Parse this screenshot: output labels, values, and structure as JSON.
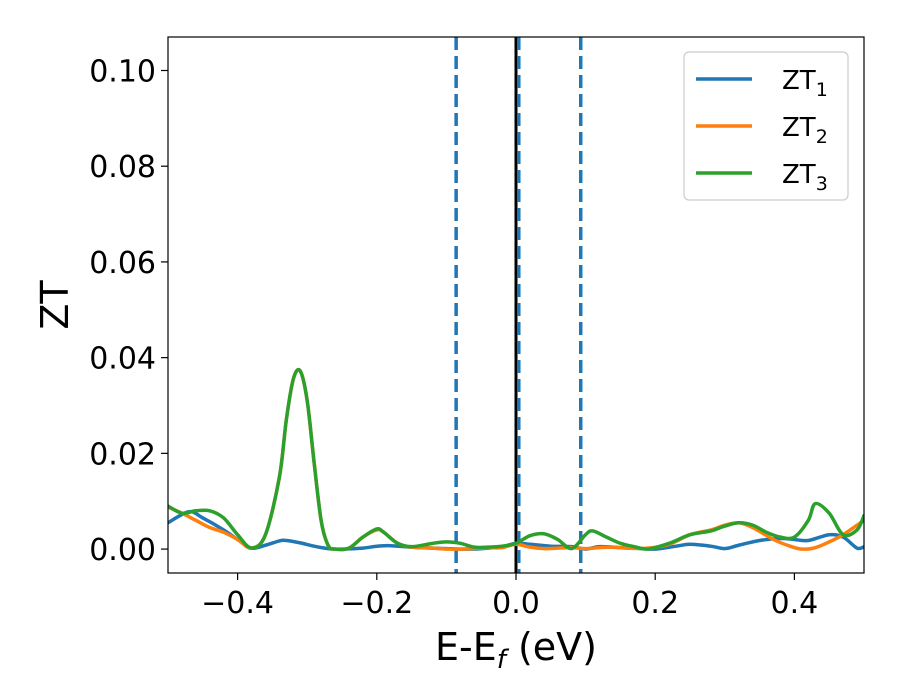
{
  "chart_data": {
    "type": "line",
    "xlabel": {
      "base": "E-E",
      "subscript": "f",
      "suffix": " (eV)"
    },
    "ylabel": "ZT",
    "xlim": [
      -0.5,
      0.5
    ],
    "ylim": [
      -0.005,
      0.107
    ],
    "xticks": [
      -0.4,
      -0.2,
      0.0,
      0.2,
      0.4
    ],
    "xtick_labels": [
      "−0.4",
      "−0.2",
      "0.0",
      "0.2",
      "0.4"
    ],
    "yticks": [
      0.0,
      0.02,
      0.04,
      0.06,
      0.08,
      0.1
    ],
    "ytick_labels": [
      "0.00",
      "0.02",
      "0.04",
      "0.06",
      "0.08",
      "0.10"
    ],
    "grid": false,
    "legend_position": "top-right",
    "vertical_lines": [
      {
        "x": 0.0,
        "style": "solid",
        "color": "#000000"
      },
      {
        "x": -0.086,
        "style": "dashed",
        "color": "#1f77b4"
      },
      {
        "x": 0.004,
        "style": "dashed",
        "color": "#1f77b4"
      },
      {
        "x": 0.093,
        "style": "dashed",
        "color": "#1f77b4"
      }
    ],
    "series": [
      {
        "name": "ZT",
        "name_sub": "1",
        "color": "#1f77b4",
        "x": [
          -0.5,
          -0.47,
          -0.45,
          -0.42,
          -0.4,
          -0.38,
          -0.36,
          -0.34,
          -0.33,
          -0.31,
          -0.29,
          -0.27,
          -0.25,
          -0.22,
          -0.2,
          -0.18,
          -0.15,
          -0.12,
          -0.1,
          -0.08,
          -0.06,
          -0.04,
          -0.02,
          0.0,
          0.02,
          0.05,
          0.08,
          0.1,
          0.12,
          0.15,
          0.18,
          0.2,
          0.23,
          0.25,
          0.28,
          0.3,
          0.32,
          0.35,
          0.38,
          0.4,
          0.42,
          0.45,
          0.47,
          0.49,
          0.5
        ],
        "y": [
          0.0055,
          0.0078,
          0.0065,
          0.004,
          0.002,
          0.0002,
          0.0008,
          0.0017,
          0.0018,
          0.0013,
          0.0006,
          0.0001,
          0.0,
          0.0002,
          0.0006,
          0.0007,
          0.0004,
          0.0002,
          0.0001,
          0.0,
          0.0,
          0.0002,
          0.0005,
          0.0012,
          0.001,
          0.0006,
          0.0005,
          0.0,
          0.0005,
          0.0003,
          0.0001,
          0.0,
          0.0006,
          0.001,
          0.0006,
          0.0001,
          0.0008,
          0.0018,
          0.0022,
          0.002,
          0.0018,
          0.003,
          0.0025,
          0.0002,
          0.0005
        ]
      },
      {
        "name": "ZT",
        "name_sub": "2",
        "color": "#ff7f0e",
        "x": [
          -0.5,
          -0.48,
          -0.46,
          -0.44,
          -0.42,
          -0.4,
          -0.38,
          -0.36,
          -0.34,
          -0.33,
          -0.32,
          -0.31,
          -0.3,
          -0.29,
          -0.28,
          -0.27,
          -0.26,
          -0.24,
          -0.22,
          -0.2,
          -0.19,
          -0.17,
          -0.15,
          -0.12,
          -0.1,
          -0.08,
          -0.06,
          -0.04,
          -0.02,
          0.0,
          0.02,
          0.04,
          0.06,
          0.08,
          0.1,
          0.12,
          0.14,
          0.16,
          0.19,
          0.22,
          0.25,
          0.28,
          0.3,
          0.32,
          0.34,
          0.37,
          0.39,
          0.41,
          0.43,
          0.45,
          0.47,
          0.49,
          0.5
        ],
        "y": [
          0.0088,
          0.0075,
          0.006,
          0.0045,
          0.0035,
          0.002,
          0.0002,
          0.003,
          0.015,
          0.027,
          0.0355,
          0.0372,
          0.031,
          0.018,
          0.006,
          0.0008,
          0.0,
          0.0002,
          0.0025,
          0.004,
          0.0035,
          0.0012,
          0.0004,
          0.0002,
          0.0,
          0.0,
          0.0001,
          0.0003,
          0.0003,
          0.001,
          0.0004,
          0.0001,
          0.0002,
          0.0003,
          0.0001,
          0.0003,
          0.0004,
          0.0002,
          0.0002,
          0.001,
          0.003,
          0.004,
          0.005,
          0.0055,
          0.0045,
          0.002,
          0.0008,
          0.0,
          0.0003,
          0.0015,
          0.003,
          0.005,
          0.006
        ]
      },
      {
        "name": "ZT",
        "name_sub": "3",
        "color": "#2ca02c",
        "x": [
          -0.5,
          -0.48,
          -0.46,
          -0.44,
          -0.42,
          -0.4,
          -0.38,
          -0.36,
          -0.34,
          -0.33,
          -0.32,
          -0.31,
          -0.3,
          -0.29,
          -0.28,
          -0.27,
          -0.26,
          -0.24,
          -0.22,
          -0.2,
          -0.19,
          -0.17,
          -0.15,
          -0.12,
          -0.1,
          -0.08,
          -0.06,
          -0.04,
          -0.02,
          0.0,
          0.02,
          0.04,
          0.06,
          0.08,
          0.1,
          0.11,
          0.13,
          0.15,
          0.17,
          0.19,
          0.22,
          0.25,
          0.28,
          0.3,
          0.32,
          0.34,
          0.36,
          0.38,
          0.4,
          0.42,
          0.43,
          0.45,
          0.47,
          0.49,
          0.5
        ],
        "y": [
          0.009,
          0.0075,
          0.008,
          0.008,
          0.0065,
          0.003,
          0.0002,
          0.003,
          0.015,
          0.027,
          0.0355,
          0.0372,
          0.031,
          0.018,
          0.006,
          0.0008,
          0.0,
          0.0002,
          0.0025,
          0.0042,
          0.0035,
          0.0012,
          0.0005,
          0.0012,
          0.0015,
          0.0012,
          0.0004,
          0.0004,
          0.0006,
          0.0012,
          0.0028,
          0.0032,
          0.002,
          0.0001,
          0.003,
          0.0038,
          0.0025,
          0.0012,
          0.0005,
          0.0,
          0.0012,
          0.003,
          0.0038,
          0.0048,
          0.0055,
          0.005,
          0.0035,
          0.0025,
          0.0025,
          0.006,
          0.0095,
          0.0075,
          0.003,
          0.004,
          0.007
        ]
      }
    ]
  }
}
